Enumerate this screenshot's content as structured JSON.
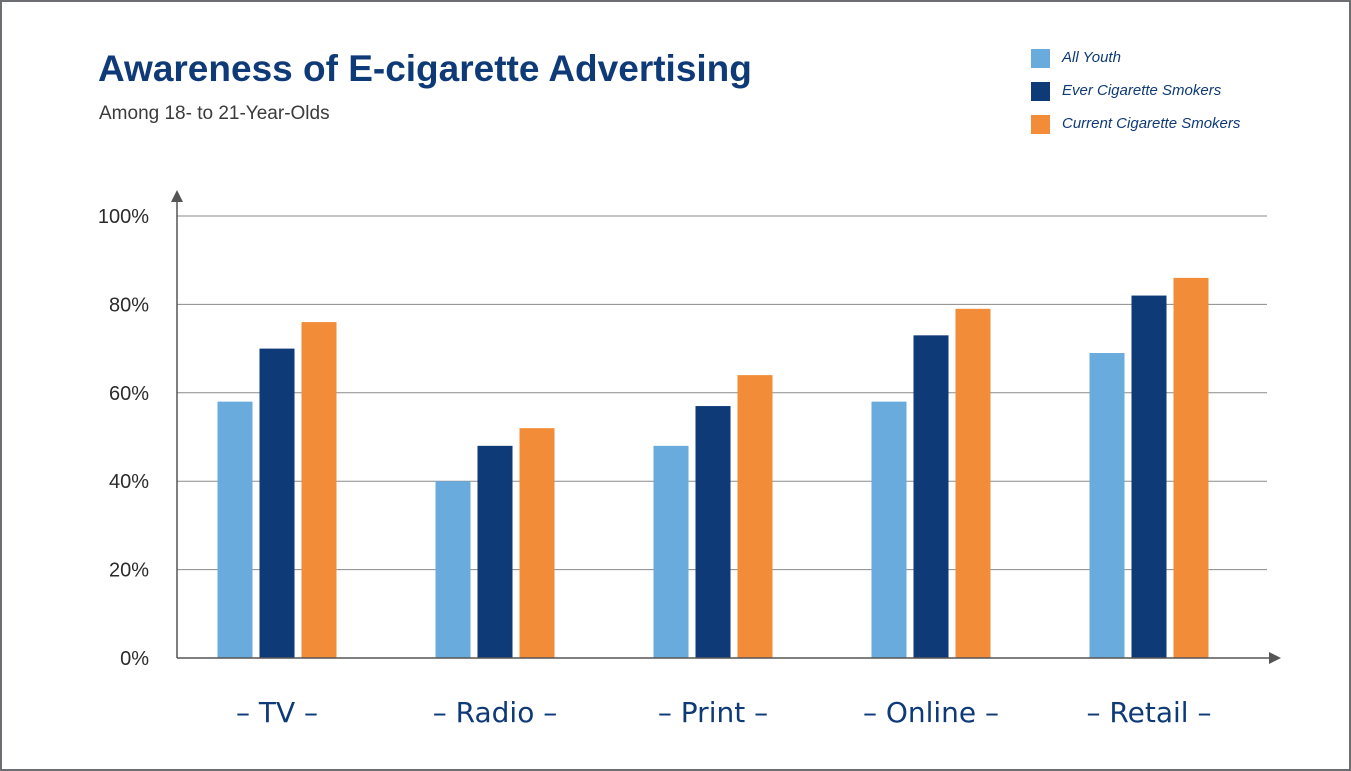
{
  "chart_data": {
    "type": "bar",
    "title": "Awareness of E-cigarette Advertising",
    "subtitle": "Among 18- to 21-Year-Olds",
    "categories": [
      "TV",
      "Radio",
      "Print",
      "Online",
      "Retail"
    ],
    "category_labels": [
      "– TV –",
      "– Radio –",
      "– Print –",
      "– Online –",
      "– Retail –"
    ],
    "series": [
      {
        "name": "All Youth",
        "color": "#6aabdd",
        "values": [
          58,
          40,
          48,
          58,
          69
        ]
      },
      {
        "name": "Ever Cigarette Smokers",
        "color": "#0f3a78",
        "values": [
          70,
          48,
          57,
          73,
          82
        ]
      },
      {
        "name": "Current Cigarette Smokers",
        "color": "#f38c39",
        "values": [
          76,
          52,
          64,
          79,
          86
        ]
      }
    ],
    "ylim": [
      0,
      100
    ],
    "yticks": [
      0,
      20,
      40,
      60,
      80,
      100
    ],
    "ytick_labels": [
      "0%",
      "20%",
      "40%",
      "60%",
      "80%",
      "100%"
    ],
    "grid": true,
    "legend_position": "top-right"
  }
}
